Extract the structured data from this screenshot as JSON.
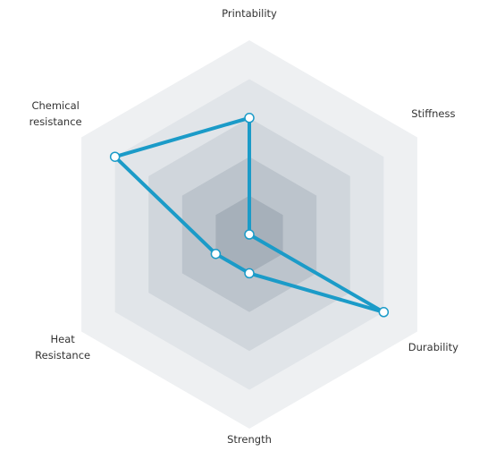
{
  "chart_data": {
    "type": "radar",
    "categories": [
      "Printability",
      "Stiffness",
      "Durability",
      "Strength",
      "Heat Resistance",
      "Chemical resistance"
    ],
    "values": [
      3,
      0,
      4,
      1,
      1,
      4
    ],
    "color": "#1b9bc8",
    "rlim": [
      0,
      5
    ],
    "rticks": [
      1,
      2,
      3,
      4,
      5
    ]
  }
}
